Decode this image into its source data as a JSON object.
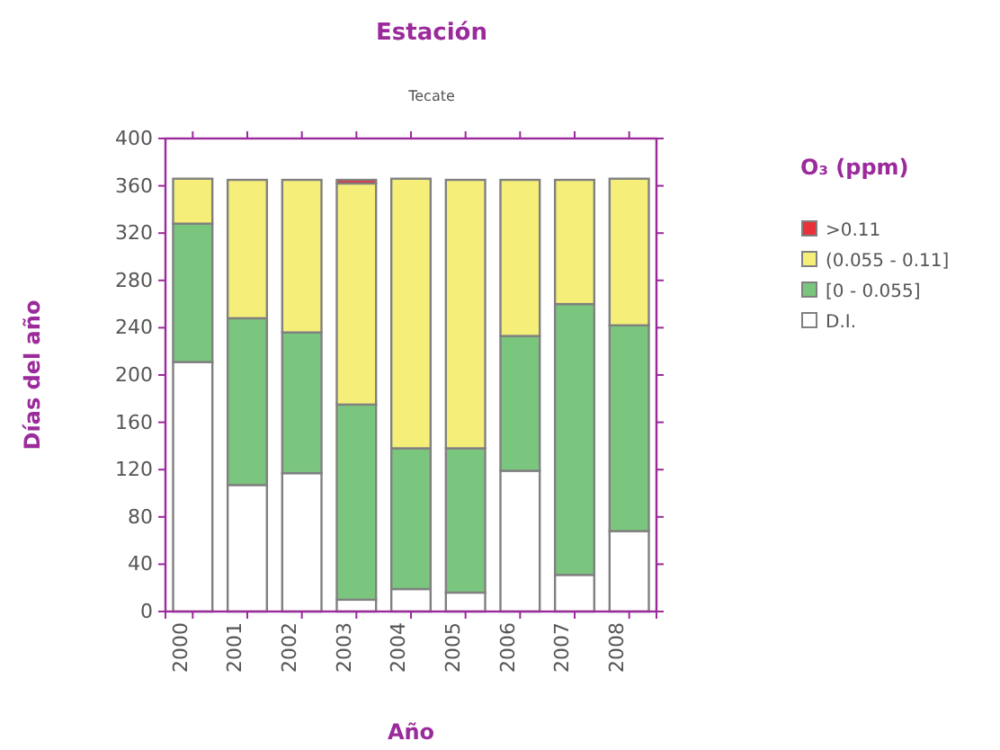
{
  "chart_data": {
    "type": "bar",
    "title": "Estación",
    "subtitle": "Tecate",
    "xlabel": "Año",
    "ylabel": "Días del año",
    "legend_title": "O₃ (ppm)",
    "categories": [
      "2000",
      "2001",
      "2002",
      "2003",
      "2004",
      "2005",
      "2006",
      "2007",
      "2008"
    ],
    "stacked": true,
    "ylim": [
      0,
      400
    ],
    "yticks": [
      0,
      40,
      80,
      120,
      160,
      200,
      240,
      280,
      320,
      360,
      400
    ],
    "legend": "right",
    "series": [
      {
        "name": "D.I.",
        "color": "#ffffff",
        "values": [
          211,
          107,
          117,
          10,
          19,
          16,
          119,
          31,
          68
        ]
      },
      {
        "name": "[0 - 0.055]",
        "color": "#7bc67e",
        "values": [
          117,
          141,
          119,
          165,
          119,
          122,
          114,
          229,
          174
        ]
      },
      {
        "name": "(0.055 - 0.11]",
        "color": "#f5ef7a",
        "values": [
          38,
          117,
          129,
          187,
          228,
          227,
          132,
          105,
          124
        ]
      },
      {
        "name": ">0.11",
        "color": "#e8313a",
        "values": [
          0,
          0,
          0,
          3,
          0,
          0,
          0,
          0,
          0
        ]
      }
    ]
  }
}
